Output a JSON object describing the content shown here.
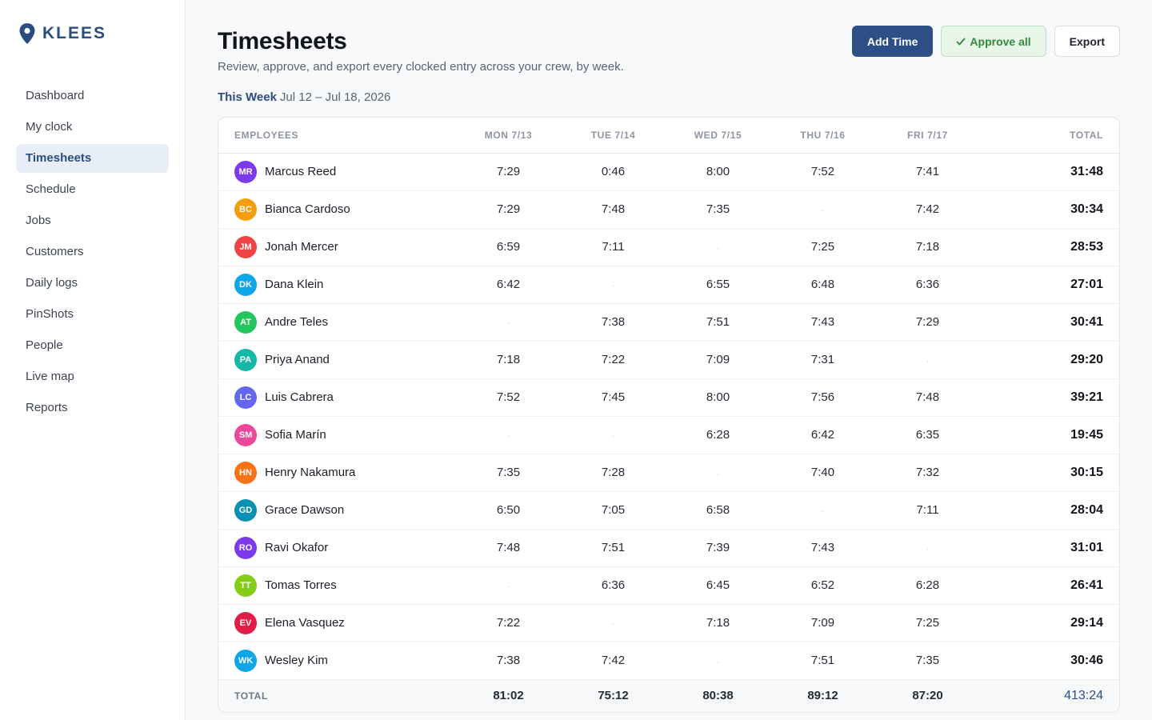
{
  "app": {
    "brand": "KLEES",
    "brand_color": "#2b4c7e"
  },
  "sidebar": {
    "items": [
      {
        "label": "Dashboard",
        "active": false
      },
      {
        "label": "My clock",
        "active": false
      },
      {
        "label": "Timesheets",
        "active": true
      },
      {
        "label": "Schedule",
        "active": false
      },
      {
        "label": "Jobs",
        "active": false
      },
      {
        "label": "Customers",
        "active": false
      },
      {
        "label": "Daily logs",
        "active": false
      },
      {
        "label": "PinShots",
        "active": false
      },
      {
        "label": "People",
        "active": false
      },
      {
        "label": "Live map",
        "active": false
      },
      {
        "label": "Reports",
        "active": false
      }
    ]
  },
  "header": {
    "title": "Timesheets",
    "subtitle": "Review, approve, and export every clocked entry across your crew, by week.",
    "add_label": "Add Time",
    "approve_label": "Approve all",
    "approve_icon": "check-icon",
    "export_label": "Export"
  },
  "week": {
    "label": "This Week",
    "range": "Jul 12 – Jul 18, 2026"
  },
  "table": {
    "headers": {
      "employees": "EMPLOYEES",
      "days": [
        "MON 7/13",
        "TUE 7/14",
        "WED 7/15",
        "THU 7/16",
        "FRI 7/17"
      ],
      "total": "TOTAL"
    },
    "rows": [
      {
        "initials": "MR",
        "name": "Marcus Reed",
        "color": "#7c3aed",
        "days": [
          "7:29",
          "0:46",
          "8:00",
          "7:52",
          "7:41"
        ],
        "total": "31:48"
      },
      {
        "initials": "BC",
        "name": "Bianca Cardoso",
        "color": "#f59e0b",
        "days": [
          "7:29",
          "7:48",
          "7:35",
          "",
          "7:42"
        ],
        "total": "30:34"
      },
      {
        "initials": "JM",
        "name": "Jonah Mercer",
        "color": "#ef4444",
        "days": [
          "6:59",
          "7:11",
          "",
          "7:25",
          "7:18"
        ],
        "total": "28:53"
      },
      {
        "initials": "DK",
        "name": "Dana Klein",
        "color": "#0ea5e9",
        "days": [
          "6:42",
          "",
          "6:55",
          "6:48",
          "6:36"
        ],
        "total": "27:01"
      },
      {
        "initials": "AT",
        "name": "Andre Teles",
        "color": "#22c55e",
        "days": [
          "",
          "7:38",
          "7:51",
          "7:43",
          "7:29"
        ],
        "total": "30:41"
      },
      {
        "initials": "PA",
        "name": "Priya Anand",
        "color": "#14b8a6",
        "days": [
          "7:18",
          "7:22",
          "7:09",
          "7:31",
          ""
        ],
        "total": "29:20"
      },
      {
        "initials": "LC",
        "name": "Luis Cabrera",
        "color": "#6366f1",
        "days": [
          "7:52",
          "7:45",
          "8:00",
          "7:56",
          "7:48"
        ],
        "total": "39:21"
      },
      {
        "initials": "SM",
        "name": "Sofia Marín",
        "color": "#ec4899",
        "days": [
          "",
          "",
          "6:28",
          "6:42",
          "6:35"
        ],
        "total": "19:45"
      },
      {
        "initials": "HN",
        "name": "Henry Nakamura",
        "color": "#f97316",
        "days": [
          "7:35",
          "7:28",
          "",
          "7:40",
          "7:32"
        ],
        "total": "30:15"
      },
      {
        "initials": "GD",
        "name": "Grace Dawson",
        "color": "#0891b2",
        "days": [
          "6:50",
          "7:05",
          "6:58",
          "",
          "7:11"
        ],
        "total": "28:04"
      },
      {
        "initials": "RO",
        "name": "Ravi Okafor",
        "color": "#7c3aed",
        "days": [
          "7:48",
          "7:51",
          "7:39",
          "7:43",
          ""
        ],
        "total": "31:01"
      },
      {
        "initials": "TT",
        "name": "Tomas Torres",
        "color": "#84cc16",
        "days": [
          "",
          "6:36",
          "6:45",
          "6:52",
          "6:28"
        ],
        "total": "26:41"
      },
      {
        "initials": "EV",
        "name": "Elena Vasquez",
        "color": "#e11d48",
        "days": [
          "7:22",
          "",
          "7:18",
          "7:09",
          "7:25"
        ],
        "total": "29:14"
      },
      {
        "initials": "WK",
        "name": "Wesley Kim",
        "color": "#0ea5e9",
        "days": [
          "7:38",
          "7:42",
          "",
          "7:51",
          "7:35"
        ],
        "total": "30:46"
      }
    ],
    "footer": {
      "label": "TOTAL",
      "days": [
        "81:02",
        "75:12",
        "80:38",
        "89:12",
        "87:20"
      ],
      "total": "413:24"
    },
    "empty_marker": "·"
  }
}
